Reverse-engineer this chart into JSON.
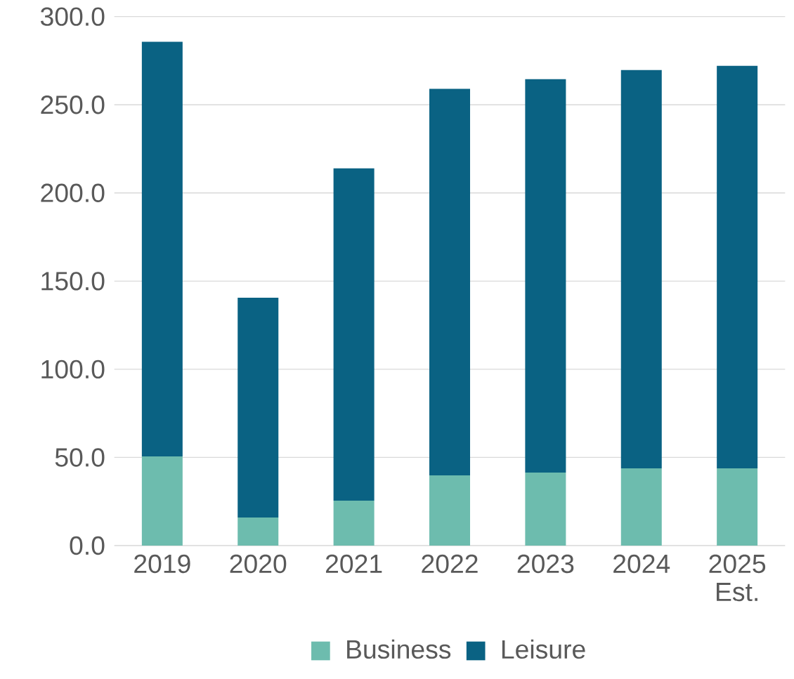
{
  "chart_data": {
    "type": "bar",
    "stacked": true,
    "categories": [
      "2019",
      "2020",
      "2021",
      "2022",
      "2023",
      "2024",
      "2025 Est."
    ],
    "series": [
      {
        "name": "Business",
        "color": "#6dbcae",
        "values": [
          50.6,
          15.9,
          25.5,
          39.8,
          41.4,
          43.8,
          43.8
        ]
      },
      {
        "name": "Leisure",
        "color": "#0a6283",
        "values": [
          235.1,
          124.7,
          188.4,
          219.2,
          223.1,
          225.9,
          228.3
        ]
      }
    ],
    "ylim": [
      0,
      300
    ],
    "yticks": [
      {
        "value": 0,
        "label": "0.0"
      },
      {
        "value": 50,
        "label": "50.0"
      },
      {
        "value": 100,
        "label": "100.0"
      },
      {
        "value": 150,
        "label": "150.0"
      },
      {
        "value": 200,
        "label": "200.0"
      },
      {
        "value": 250,
        "label": "250.0"
      },
      {
        "value": 300,
        "label": "300.0"
      }
    ],
    "grid": "y",
    "legend": "bottom"
  }
}
